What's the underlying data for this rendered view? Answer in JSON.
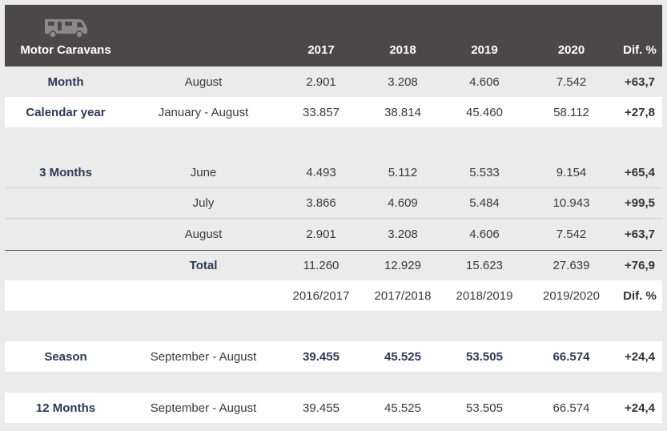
{
  "header": {
    "category": "Motor Caravans",
    "icon": "motorhome-icon",
    "years": [
      "2017",
      "2018",
      "2019",
      "2020"
    ],
    "dif": "Dif. %"
  },
  "month_row": {
    "label": "Month",
    "period": "August",
    "values": [
      "2.901",
      "3.208",
      "4.606",
      "7.542"
    ],
    "dif": "+63,7"
  },
  "calendar_row": {
    "label": "Calendar year",
    "period": "January - August",
    "values": [
      "33.857",
      "38.814",
      "45.460",
      "58.112"
    ],
    "dif": "+27,8"
  },
  "three_months": {
    "label": "3 Months",
    "rows": [
      {
        "period": "June",
        "values": [
          "4.493",
          "5.112",
          "5.533",
          "9.154"
        ],
        "dif": "+65,4"
      },
      {
        "period": "July",
        "values": [
          "3.866",
          "4.609",
          "5.484",
          "10.943"
        ],
        "dif": "+99,5"
      },
      {
        "period": "August",
        "values": [
          "2.901",
          "3.208",
          "4.606",
          "7.542"
        ],
        "dif": "+63,7"
      }
    ],
    "total": {
      "label": "Total",
      "values": [
        "11.260",
        "12.929",
        "15.623",
        "27.639"
      ],
      "dif": "+76,9"
    }
  },
  "season_header": {
    "periods": [
      "2016/2017",
      "2017/2018",
      "2018/2019",
      "2019/2020"
    ],
    "dif": "Dif. %"
  },
  "season_row": {
    "label": "Season",
    "period": "September - August",
    "values": [
      "39.455",
      "45.525",
      "53.505",
      "66.574"
    ],
    "dif": "+24,4"
  },
  "twelve_row": {
    "label": "12 Months",
    "period": "September - August",
    "values": [
      "39.455",
      "45.525",
      "53.505",
      "66.574"
    ],
    "dif": "+24,4"
  }
}
